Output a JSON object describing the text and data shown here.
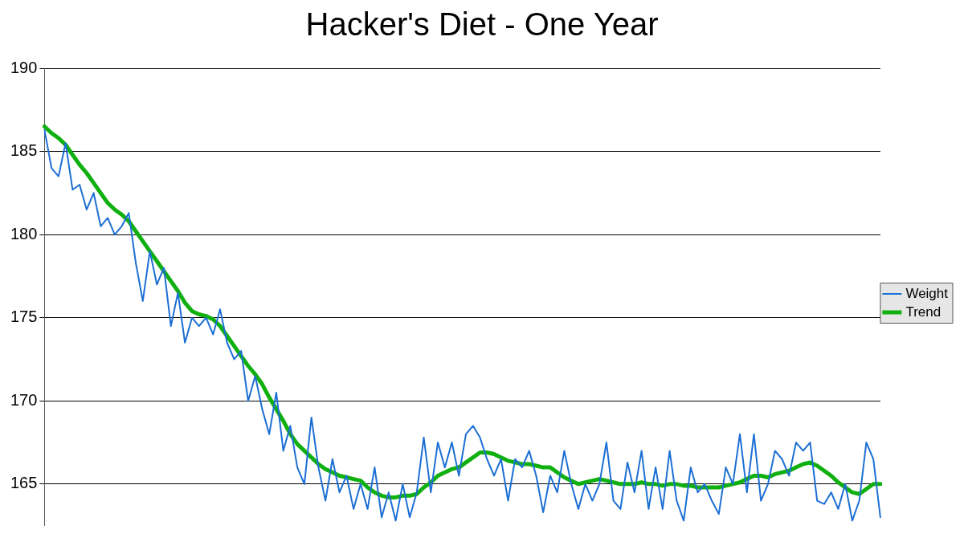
{
  "chart_data": {
    "type": "line",
    "title": "Hacker's Diet - One Year",
    "categories": [
      null,
      null,
      null,
      null,
      null,
      null,
      null,
      null,
      null,
      null,
      null,
      null,
      null,
      null,
      null,
      null,
      null,
      null,
      null,
      null,
      null,
      null,
      null,
      null,
      null,
      null,
      null,
      null,
      null,
      null,
      null,
      null,
      null,
      null,
      null,
      null,
      null,
      null,
      null,
      null,
      null,
      null,
      null,
      null,
      null,
      null,
      null,
      null,
      null,
      null,
      null,
      null,
      null,
      null,
      null,
      null,
      null,
      null,
      null,
      null,
      null,
      null,
      null,
      null,
      null,
      null,
      null,
      null,
      null,
      null,
      null,
      null,
      null,
      null,
      null,
      null,
      null,
      null,
      null,
      null,
      null,
      null,
      null,
      null,
      null,
      null,
      null,
      null,
      null,
      null,
      null,
      null,
      null,
      null,
      null,
      null,
      null,
      null,
      null,
      null,
      null,
      null,
      null,
      null,
      null,
      null,
      null,
      null,
      null,
      null,
      null,
      null,
      null,
      null,
      null,
      null,
      null,
      null,
      null,
      null
    ],
    "series": [
      {
        "name": "Weight",
        "color": "#1c6fd4",
        "values": [
          186.3,
          184,
          183.5,
          185.5,
          182.7,
          183,
          181.5,
          182.5,
          180.5,
          181,
          180,
          180.5,
          181.3,
          178.3,
          176,
          179,
          177,
          178,
          174.5,
          176.5,
          173.5,
          175,
          174.5,
          175,
          174,
          175.5,
          173.5,
          172.5,
          173,
          170,
          171.5,
          169.5,
          168,
          170.5,
          167,
          168.5,
          166,
          165,
          169,
          166,
          164,
          166.5,
          164.5,
          165.5,
          163.5,
          165,
          163.5,
          166,
          163,
          164.5,
          162.8,
          165,
          163,
          164.5,
          167.8,
          164.5,
          167.5,
          166,
          167.5,
          165.5,
          168,
          168.5,
          167.8,
          166.5,
          165.5,
          166.5,
          164,
          166.5,
          166,
          167,
          165.5,
          163.3,
          165.5,
          164.5,
          167,
          165,
          163.5,
          165,
          164,
          165,
          167.5,
          164,
          163.5,
          166.3,
          164.5,
          167,
          163.5,
          166,
          163.5,
          167,
          164,
          162.8,
          166,
          164.5,
          165,
          164,
          163.2,
          166,
          165,
          168,
          164.5,
          168,
          164,
          165,
          167,
          166.5,
          165.5,
          167.5,
          167,
          167.5,
          164,
          163.8,
          164.5,
          163.5,
          165,
          162.8,
          164,
          167.5,
          166.5,
          163
        ]
      },
      {
        "name": "Trend",
        "color": "#11b011",
        "values": [
          186.5,
          186.1,
          185.8,
          185.4,
          184.8,
          184.2,
          183.7,
          183.1,
          182.5,
          181.9,
          181.5,
          181.2,
          180.8,
          180.2,
          179.6,
          179,
          178.4,
          177.8,
          177.2,
          176.6,
          175.9,
          175.4,
          175.2,
          175.1,
          174.9,
          174.5,
          173.9,
          173.3,
          172.7,
          172.1,
          171.6,
          171,
          170.2,
          169.5,
          168.8,
          168,
          167.4,
          167,
          166.6,
          166.2,
          165.9,
          165.7,
          165.5,
          165.4,
          165.3,
          165.2,
          164.8,
          164.5,
          164.3,
          164.2,
          164.2,
          164.3,
          164.3,
          164.4,
          164.8,
          165.1,
          165.5,
          165.7,
          165.9,
          166,
          166.3,
          166.6,
          166.9,
          166.9,
          166.8,
          166.6,
          166.4,
          166.3,
          166.2,
          166.2,
          166.1,
          166,
          166,
          165.7,
          165.4,
          165.2,
          165,
          165.1,
          165.2,
          165.3,
          165.2,
          165.1,
          165,
          165,
          165,
          165.1,
          165,
          165,
          164.9,
          165,
          165,
          164.9,
          164.9,
          164.8,
          164.8,
          164.8,
          164.8,
          164.9,
          165,
          165.1,
          165.3,
          165.5,
          165.5,
          165.4,
          165.6,
          165.7,
          165.8,
          166,
          166.2,
          166.3,
          166.1,
          165.8,
          165.5,
          165.1,
          164.8,
          164.5,
          164.4,
          164.7,
          165,
          165
        ]
      }
    ],
    "ylim": [
      162.5,
      190
    ],
    "yticks": [
      165,
      170,
      175,
      180,
      185,
      190
    ],
    "grid": "y",
    "legend": "right",
    "line_style": "solid"
  }
}
